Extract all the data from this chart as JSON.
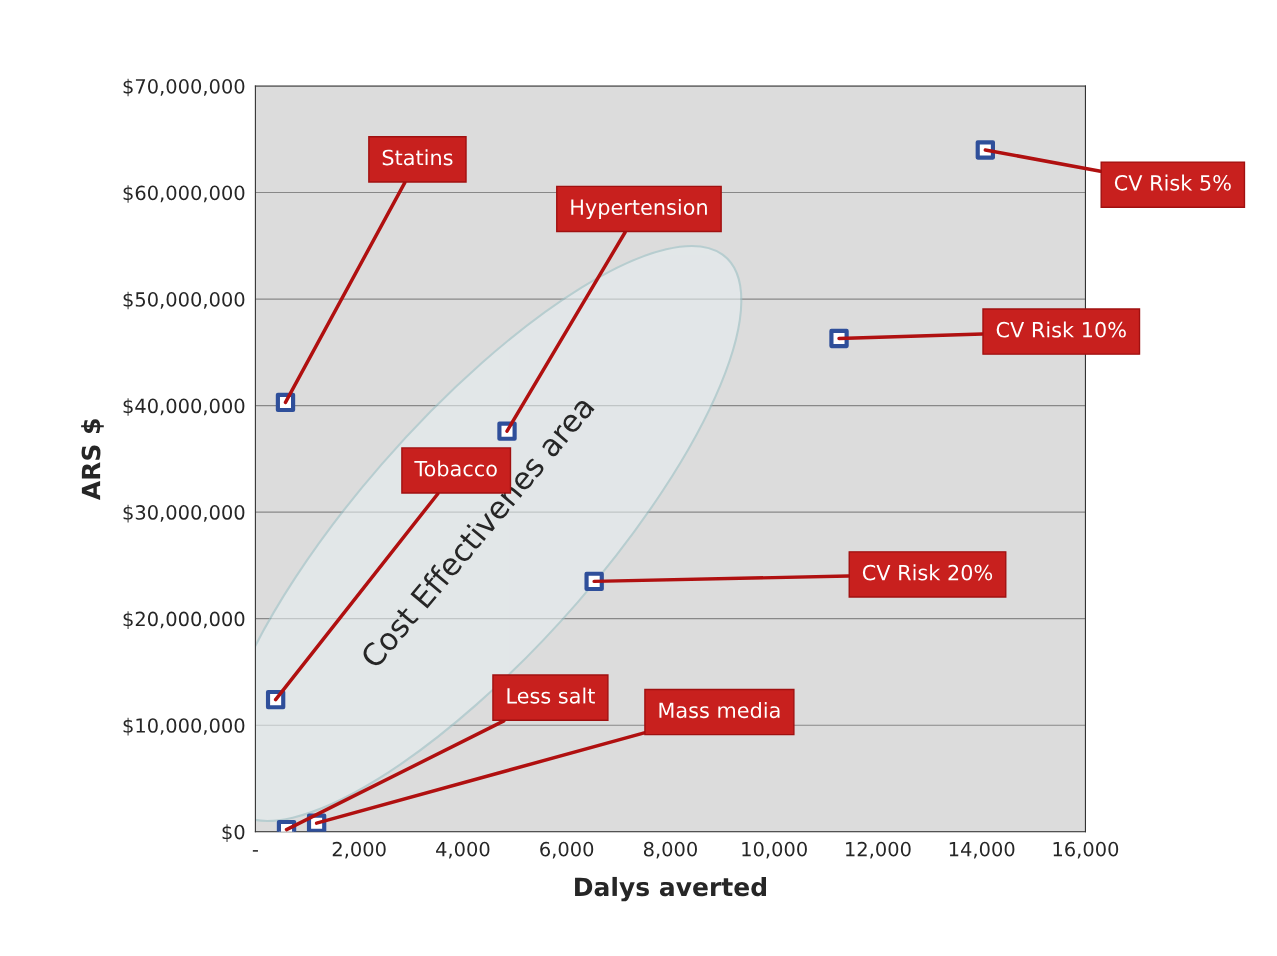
{
  "chart_data": {
    "type": "scatter",
    "xlabel": "Dalys averted",
    "ylabel": "ARS $",
    "x": [
      580,
      4850,
      14070,
      11250,
      390,
      6530,
      600,
      1180
    ],
    "series": [
      {
        "color": "#2f4f9a",
        "values": [
          40300000,
          37600000,
          64000000,
          46300000,
          12400000,
          23500000,
          200000,
          800000
        ]
      }
    ],
    "marker": "square",
    "grid": "y",
    "xlim": [
      0,
      16000
    ],
    "xticks": [
      {
        "value": 0,
        "label": "-"
      },
      {
        "value": 2000,
        "label": "2,000"
      },
      {
        "value": 4000,
        "label": "4,000"
      },
      {
        "value": 6000,
        "label": "6,000"
      },
      {
        "value": 8000,
        "label": "8,000"
      },
      {
        "value": 10000,
        "label": "10,000"
      },
      {
        "value": 12000,
        "label": "12,000"
      },
      {
        "value": 14000,
        "label": "14,000"
      },
      {
        "value": 16000,
        "label": "16,000"
      }
    ],
    "ylim": [
      0,
      70000000
    ],
    "yticks": [
      {
        "value": 0,
        "label": "$0"
      },
      {
        "value": 10000000,
        "label": "$10,000,000"
      },
      {
        "value": 20000000,
        "label": "$20,000,000"
      },
      {
        "value": 30000000,
        "label": "$30,000,000"
      },
      {
        "value": 40000000,
        "label": "$40,000,000"
      },
      {
        "value": 50000000,
        "label": "$50,000,000"
      },
      {
        "value": 60000000,
        "label": "$60,000,000"
      },
      {
        "value": 70000000,
        "label": "$70,000,000"
      }
    ],
    "annotations": [
      {
        "text": "Statins",
        "x": 580,
        "y": 40300000
      },
      {
        "text": "Hypertension",
        "x": 4850,
        "y": 37600000
      },
      {
        "text": "CV Risk 5%",
        "x": 14070,
        "y": 64000000
      },
      {
        "text": "CV Risk 10%",
        "x": 11250,
        "y": 46300000
      },
      {
        "text": "Tobacco",
        "x": 390,
        "y": 12400000
      },
      {
        "text": "CV Risk 20%",
        "x": 6530,
        "y": 23500000
      },
      {
        "text": "Less salt",
        "x": 600,
        "y": 200000
      },
      {
        "text": "Mass media",
        "x": 1180,
        "y": 800000
      },
      "Cost Effectivenes area"
    ]
  }
}
